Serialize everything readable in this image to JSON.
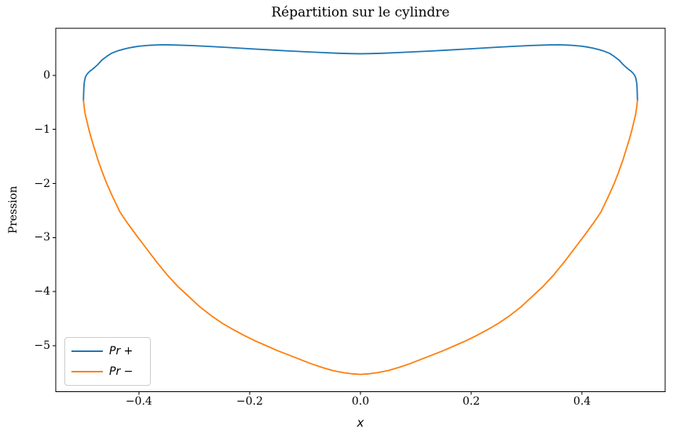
{
  "figure": {
    "background": "#ffffff",
    "text_color": "#000000",
    "spine_color": "#000000"
  },
  "chart_data": {
    "type": "line",
    "title": "Répartition sur le cylindre",
    "xlabel": "x",
    "ylabel": "Pression",
    "xlim": [
      -0.55,
      0.55
    ],
    "ylim": [
      -5.85,
      0.87
    ],
    "grid": false,
    "legend_position": "lower left",
    "x_ticks": {
      "values": [
        -0.4,
        -0.2,
        0.0,
        0.2,
        0.4
      ],
      "labels": [
        "−0.4",
        "−0.2",
        "0.0",
        "0.2",
        "0.4"
      ]
    },
    "y_ticks": {
      "values": [
        0,
        -1,
        -2,
        -3,
        -4,
        -5
      ],
      "labels": [
        "0",
        "−1",
        "−2",
        "−3",
        "−4",
        "−5"
      ]
    },
    "series": [
      {
        "name": "Pr +",
        "color": "#1f77b4",
        "points": [
          [
            -0.5,
            -0.47
          ],
          [
            -0.4997,
            -0.34
          ],
          [
            -0.4993,
            -0.23
          ],
          [
            -0.4985,
            -0.13
          ],
          [
            -0.497,
            -0.05
          ],
          [
            -0.495,
            0.0
          ],
          [
            -0.492,
            0.04
          ],
          [
            -0.488,
            0.08
          ],
          [
            -0.484,
            0.11
          ],
          [
            -0.481,
            0.135
          ],
          [
            -0.474,
            0.2
          ],
          [
            -0.467,
            0.28
          ],
          [
            -0.458,
            0.35
          ],
          [
            -0.449,
            0.41
          ],
          [
            -0.439,
            0.45
          ],
          [
            -0.429,
            0.48
          ],
          [
            -0.419,
            0.505
          ],
          [
            -0.409,
            0.524
          ],
          [
            -0.399,
            0.539
          ],
          [
            -0.379,
            0.557
          ],
          [
            -0.359,
            0.565
          ],
          [
            -0.339,
            0.562
          ],
          [
            -0.309,
            0.552
          ],
          [
            -0.279,
            0.538
          ],
          [
            -0.249,
            0.521
          ],
          [
            -0.219,
            0.503
          ],
          [
            -0.189,
            0.485
          ],
          [
            -0.159,
            0.468
          ],
          [
            -0.129,
            0.451
          ],
          [
            -0.099,
            0.436
          ],
          [
            -0.069,
            0.421
          ],
          [
            -0.039,
            0.408
          ],
          [
            -0.019,
            0.402
          ],
          [
            0.0,
            0.399
          ],
          [
            0.019,
            0.402
          ],
          [
            0.039,
            0.408
          ],
          [
            0.069,
            0.421
          ],
          [
            0.099,
            0.436
          ],
          [
            0.129,
            0.451
          ],
          [
            0.159,
            0.468
          ],
          [
            0.189,
            0.485
          ],
          [
            0.219,
            0.503
          ],
          [
            0.249,
            0.521
          ],
          [
            0.279,
            0.538
          ],
          [
            0.309,
            0.552
          ],
          [
            0.339,
            0.562
          ],
          [
            0.359,
            0.565
          ],
          [
            0.379,
            0.557
          ],
          [
            0.399,
            0.539
          ],
          [
            0.409,
            0.524
          ],
          [
            0.419,
            0.505
          ],
          [
            0.429,
            0.48
          ],
          [
            0.439,
            0.45
          ],
          [
            0.449,
            0.41
          ],
          [
            0.458,
            0.35
          ],
          [
            0.467,
            0.28
          ],
          [
            0.474,
            0.2
          ],
          [
            0.481,
            0.135
          ],
          [
            0.484,
            0.11
          ],
          [
            0.488,
            0.08
          ],
          [
            0.492,
            0.04
          ],
          [
            0.495,
            0.0
          ],
          [
            0.497,
            -0.05
          ],
          [
            0.4985,
            -0.13
          ],
          [
            0.4993,
            -0.23
          ],
          [
            0.4997,
            -0.34
          ],
          [
            0.5,
            -0.47
          ]
        ]
      },
      {
        "name": "Pr −",
        "color": "#ff7f0e",
        "points": [
          [
            -0.5,
            -0.47
          ],
          [
            -0.4985,
            -0.6
          ],
          [
            -0.497,
            -0.71
          ],
          [
            -0.494,
            -0.84
          ],
          [
            -0.49,
            -1.01
          ],
          [
            -0.486,
            -1.16
          ],
          [
            -0.48,
            -1.36
          ],
          [
            -0.474,
            -1.56
          ],
          [
            -0.466,
            -1.79
          ],
          [
            -0.458,
            -2.0
          ],
          [
            -0.448,
            -2.23
          ],
          [
            -0.434,
            -2.53
          ],
          [
            -0.42,
            -2.74
          ],
          [
            -0.405,
            -2.95
          ],
          [
            -0.388,
            -3.18
          ],
          [
            -0.368,
            -3.45
          ],
          [
            -0.348,
            -3.7
          ],
          [
            -0.33,
            -3.9
          ],
          [
            -0.311,
            -4.08
          ],
          [
            -0.29,
            -4.28
          ],
          [
            -0.27,
            -4.44
          ],
          [
            -0.25,
            -4.58
          ],
          [
            -0.23,
            -4.7
          ],
          [
            -0.21,
            -4.81
          ],
          [
            -0.19,
            -4.91
          ],
          [
            -0.17,
            -5.0
          ],
          [
            -0.15,
            -5.09
          ],
          [
            -0.13,
            -5.17
          ],
          [
            -0.11,
            -5.25
          ],
          [
            -0.09,
            -5.33
          ],
          [
            -0.07,
            -5.4
          ],
          [
            -0.05,
            -5.46
          ],
          [
            -0.03,
            -5.5
          ],
          [
            -0.015,
            -5.52
          ],
          [
            0.0,
            -5.53
          ],
          [
            0.015,
            -5.52
          ],
          [
            0.03,
            -5.5
          ],
          [
            0.05,
            -5.46
          ],
          [
            0.07,
            -5.4
          ],
          [
            0.09,
            -5.33
          ],
          [
            0.11,
            -5.25
          ],
          [
            0.13,
            -5.17
          ],
          [
            0.15,
            -5.09
          ],
          [
            0.17,
            -5.0
          ],
          [
            0.19,
            -4.91
          ],
          [
            0.21,
            -4.81
          ],
          [
            0.23,
            -4.7
          ],
          [
            0.25,
            -4.58
          ],
          [
            0.27,
            -4.44
          ],
          [
            0.29,
            -4.28
          ],
          [
            0.311,
            -4.08
          ],
          [
            0.33,
            -3.9
          ],
          [
            0.348,
            -3.7
          ],
          [
            0.368,
            -3.45
          ],
          [
            0.388,
            -3.18
          ],
          [
            0.405,
            -2.95
          ],
          [
            0.42,
            -2.74
          ],
          [
            0.434,
            -2.53
          ],
          [
            0.448,
            -2.23
          ],
          [
            0.458,
            -2.0
          ],
          [
            0.466,
            -1.79
          ],
          [
            0.474,
            -1.56
          ],
          [
            0.48,
            -1.36
          ],
          [
            0.486,
            -1.16
          ],
          [
            0.49,
            -1.01
          ],
          [
            0.494,
            -0.84
          ],
          [
            0.497,
            -0.71
          ],
          [
            0.4985,
            -0.6
          ],
          [
            0.5,
            -0.47
          ]
        ]
      }
    ]
  }
}
